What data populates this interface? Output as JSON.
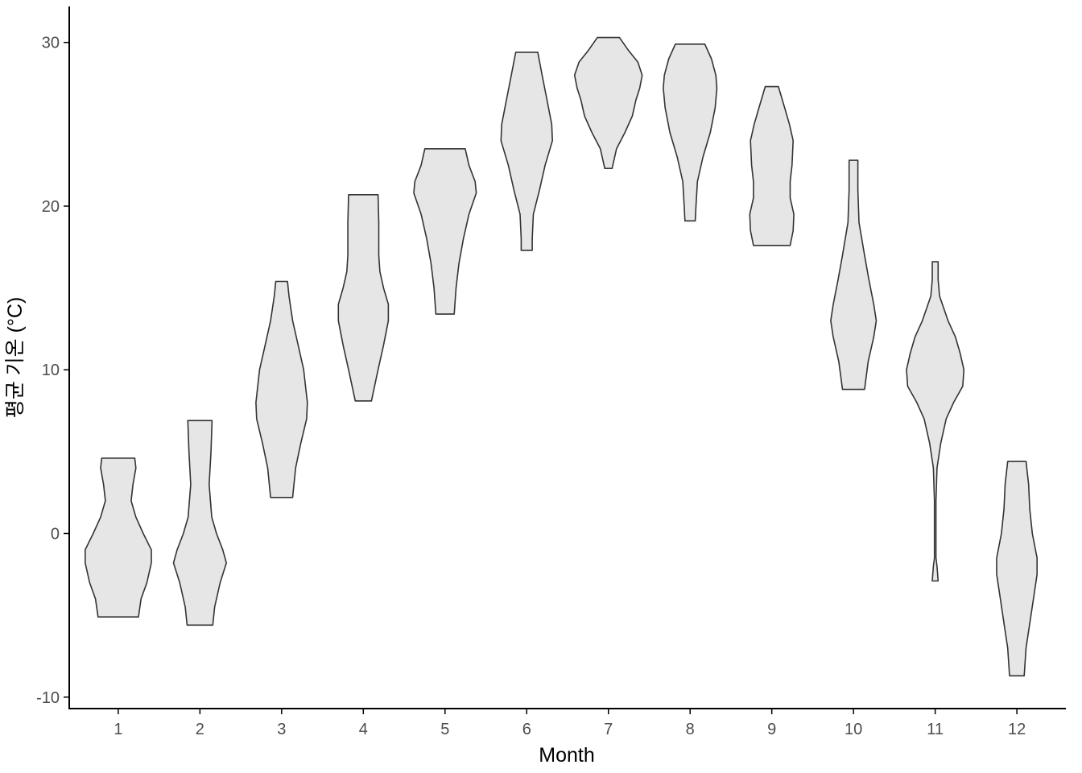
{
  "chart_data": {
    "type": "violin",
    "title": "",
    "xlabel": "Month",
    "ylabel": "평균 기온 (°C)",
    "categories": [
      "1",
      "2",
      "3",
      "4",
      "5",
      "6",
      "7",
      "8",
      "9",
      "10",
      "11",
      "12"
    ],
    "ylim": [
      -10.7,
      32.2
    ],
    "yticks": [
      -10,
      0,
      10,
      20,
      30
    ],
    "ytick_labels": [
      "-10",
      "0",
      "10",
      "20",
      "30"
    ],
    "grid": false,
    "legend": "none",
    "fill_color": "#e6e6e6",
    "outline_color": "#333333",
    "violins": [
      {
        "category": "1",
        "min": -5.1,
        "max": 4.6,
        "profile": [
          [
            4.6,
            0.45
          ],
          [
            4.0,
            0.48
          ],
          [
            3.0,
            0.4
          ],
          [
            2.0,
            0.35
          ],
          [
            1.0,
            0.48
          ],
          [
            0.0,
            0.68
          ],
          [
            -1.0,
            0.9
          ],
          [
            -1.8,
            0.9
          ],
          [
            -3.0,
            0.78
          ],
          [
            -4.0,
            0.62
          ],
          [
            -5.1,
            0.55
          ]
        ]
      },
      {
        "category": "2",
        "min": -5.6,
        "max": 6.9,
        "profile": [
          [
            6.9,
            0.33
          ],
          [
            5.0,
            0.3
          ],
          [
            3.0,
            0.25
          ],
          [
            1.0,
            0.32
          ],
          [
            0.0,
            0.45
          ],
          [
            -1.0,
            0.62
          ],
          [
            -1.8,
            0.72
          ],
          [
            -3.0,
            0.55
          ],
          [
            -4.5,
            0.4
          ],
          [
            -5.6,
            0.35
          ]
        ]
      },
      {
        "category": "3",
        "min": 2.2,
        "max": 15.4,
        "profile": [
          [
            15.4,
            0.16
          ],
          [
            14.5,
            0.2
          ],
          [
            13.0,
            0.3
          ],
          [
            11.5,
            0.45
          ],
          [
            10.0,
            0.6
          ],
          [
            8.0,
            0.7
          ],
          [
            7.0,
            0.68
          ],
          [
            5.5,
            0.52
          ],
          [
            4.0,
            0.38
          ],
          [
            2.2,
            0.3
          ]
        ]
      },
      {
        "category": "4",
        "min": 8.1,
        "max": 20.7,
        "profile": [
          [
            20.7,
            0.4
          ],
          [
            19.0,
            0.42
          ],
          [
            17.0,
            0.42
          ],
          [
            16.0,
            0.45
          ],
          [
            15.0,
            0.55
          ],
          [
            14.0,
            0.68
          ],
          [
            13.0,
            0.68
          ],
          [
            11.5,
            0.55
          ],
          [
            10.0,
            0.4
          ],
          [
            8.1,
            0.22
          ]
        ]
      },
      {
        "category": "5",
        "min": 13.4,
        "max": 23.5,
        "profile": [
          [
            23.5,
            0.55
          ],
          [
            22.5,
            0.65
          ],
          [
            21.5,
            0.82
          ],
          [
            20.8,
            0.85
          ],
          [
            19.5,
            0.65
          ],
          [
            18.0,
            0.5
          ],
          [
            16.5,
            0.38
          ],
          [
            15.0,
            0.3
          ],
          [
            13.4,
            0.25
          ]
        ]
      },
      {
        "category": "6",
        "min": 17.3,
        "max": 29.4,
        "profile": [
          [
            29.4,
            0.3
          ],
          [
            28.0,
            0.42
          ],
          [
            26.5,
            0.55
          ],
          [
            25.0,
            0.68
          ],
          [
            24.0,
            0.7
          ],
          [
            22.5,
            0.5
          ],
          [
            21.0,
            0.35
          ],
          [
            19.5,
            0.18
          ],
          [
            18.0,
            0.15
          ],
          [
            17.3,
            0.15
          ]
        ]
      },
      {
        "category": "7",
        "min": 22.3,
        "max": 30.3,
        "profile": [
          [
            30.3,
            0.3
          ],
          [
            29.5,
            0.55
          ],
          [
            28.8,
            0.8
          ],
          [
            28.0,
            0.92
          ],
          [
            27.2,
            0.85
          ],
          [
            26.5,
            0.75
          ],
          [
            25.5,
            0.65
          ],
          [
            24.5,
            0.45
          ],
          [
            23.5,
            0.22
          ],
          [
            22.3,
            0.1
          ]
        ]
      },
      {
        "category": "8",
        "min": 19.1,
        "max": 29.9,
        "profile": [
          [
            29.9,
            0.4
          ],
          [
            29.0,
            0.58
          ],
          [
            28.0,
            0.7
          ],
          [
            27.2,
            0.73
          ],
          [
            26.0,
            0.68
          ],
          [
            24.5,
            0.55
          ],
          [
            23.0,
            0.35
          ],
          [
            21.5,
            0.2
          ],
          [
            20.0,
            0.16
          ],
          [
            19.1,
            0.14
          ]
        ]
      },
      {
        "category": "9",
        "min": 17.6,
        "max": 27.3,
        "profile": [
          [
            27.3,
            0.18
          ],
          [
            26.0,
            0.35
          ],
          [
            25.0,
            0.48
          ],
          [
            24.0,
            0.58
          ],
          [
            22.5,
            0.55
          ],
          [
            21.5,
            0.5
          ],
          [
            20.5,
            0.5
          ],
          [
            19.5,
            0.6
          ],
          [
            18.5,
            0.58
          ],
          [
            17.6,
            0.5
          ]
        ]
      },
      {
        "category": "10",
        "min": 8.8,
        "max": 22.8,
        "profile": [
          [
            22.8,
            0.12
          ],
          [
            21.0,
            0.12
          ],
          [
            19.0,
            0.15
          ],
          [
            17.0,
            0.3
          ],
          [
            15.5,
            0.42
          ],
          [
            14.0,
            0.55
          ],
          [
            13.0,
            0.62
          ],
          [
            12.0,
            0.55
          ],
          [
            10.5,
            0.4
          ],
          [
            8.8,
            0.3
          ]
        ]
      },
      {
        "category": "11",
        "min": -2.9,
        "max": 16.6,
        "profile": [
          [
            16.6,
            0.08
          ],
          [
            15.5,
            0.08
          ],
          [
            14.5,
            0.12
          ],
          [
            13.0,
            0.35
          ],
          [
            12.0,
            0.55
          ],
          [
            11.0,
            0.68
          ],
          [
            10.0,
            0.78
          ],
          [
            9.0,
            0.75
          ],
          [
            8.0,
            0.5
          ],
          [
            7.0,
            0.3
          ],
          [
            5.5,
            0.15
          ],
          [
            4.0,
            0.05
          ],
          [
            2.0,
            0.02
          ],
          [
            0.0,
            0.02
          ],
          [
            -1.5,
            0.02
          ],
          [
            -2.0,
            0.05
          ],
          [
            -2.9,
            0.08
          ]
        ]
      },
      {
        "category": "12",
        "min": -8.7,
        "max": 4.4,
        "profile": [
          [
            4.4,
            0.25
          ],
          [
            3.0,
            0.32
          ],
          [
            1.5,
            0.35
          ],
          [
            0.0,
            0.42
          ],
          [
            -1.5,
            0.55
          ],
          [
            -2.5,
            0.55
          ],
          [
            -4.0,
            0.45
          ],
          [
            -5.5,
            0.35
          ],
          [
            -7.0,
            0.25
          ],
          [
            -8.7,
            0.2
          ]
        ]
      }
    ]
  }
}
